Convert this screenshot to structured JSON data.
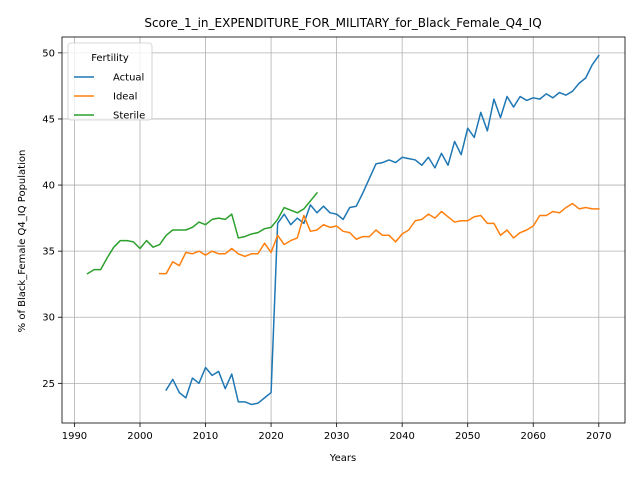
{
  "chart_data": {
    "type": "line",
    "title": "Score_1_in_EXPENDITURE_FOR_MILITARY_for_Black_Female_Q4_IQ",
    "xlabel": "Years",
    "ylabel": "% of Black_Female Q4_IQ Population",
    "xlim": [
      1988.1,
      2074.0
    ],
    "ylim": [
      22.0,
      51.2
    ],
    "xticks": [
      1990,
      2000,
      2010,
      2020,
      2030,
      2040,
      2050,
      2060,
      2070
    ],
    "yticks": [
      25,
      30,
      35,
      40,
      45,
      50
    ],
    "grid": true,
    "legend": {
      "title": "Fertility",
      "position": "top-left"
    },
    "series": [
      {
        "name": "Actual",
        "color": "#1f77b4",
        "points": [
          [
            2004,
            24.5
          ],
          [
            2005,
            25.3
          ],
          [
            2006,
            24.3
          ],
          [
            2007,
            23.9
          ],
          [
            2008,
            25.4
          ],
          [
            2009,
            25.0
          ],
          [
            2010,
            26.2
          ],
          [
            2011,
            25.6
          ],
          [
            2012,
            25.9
          ],
          [
            2013,
            24.6
          ],
          [
            2014,
            25.7
          ],
          [
            2015,
            23.6
          ],
          [
            2016,
            23.6
          ],
          [
            2017,
            23.4
          ],
          [
            2018,
            23.5
          ],
          [
            2019,
            23.9
          ],
          [
            2020,
            24.3
          ],
          [
            2021,
            37.1
          ],
          [
            2022,
            37.8
          ],
          [
            2023,
            37.0
          ],
          [
            2024,
            37.5
          ],
          [
            2025,
            37.1
          ],
          [
            2026,
            38.5
          ],
          [
            2027,
            37.9
          ],
          [
            2028,
            38.4
          ],
          [
            2029,
            37.9
          ],
          [
            2030,
            37.8
          ],
          [
            2031,
            37.4
          ],
          [
            2032,
            38.3
          ],
          [
            2033,
            38.4
          ],
          [
            2034,
            39.4
          ],
          [
            2035,
            40.5
          ],
          [
            2036,
            41.6
          ],
          [
            2037,
            41.7
          ],
          [
            2038,
            41.9
          ],
          [
            2039,
            41.7
          ],
          [
            2040,
            42.1
          ],
          [
            2041,
            42.0
          ],
          [
            2042,
            41.9
          ],
          [
            2043,
            41.5
          ],
          [
            2044,
            42.1
          ],
          [
            2045,
            41.3
          ],
          [
            2046,
            42.4
          ],
          [
            2047,
            41.5
          ],
          [
            2048,
            43.3
          ],
          [
            2049,
            42.3
          ],
          [
            2050,
            44.3
          ],
          [
            2051,
            43.6
          ],
          [
            2052,
            45.5
          ],
          [
            2053,
            44.1
          ],
          [
            2054,
            46.5
          ],
          [
            2055,
            45.1
          ],
          [
            2056,
            46.7
          ],
          [
            2057,
            45.9
          ],
          [
            2058,
            46.7
          ],
          [
            2059,
            46.4
          ],
          [
            2060,
            46.6
          ],
          [
            2061,
            46.5
          ],
          [
            2062,
            46.9
          ],
          [
            2063,
            46.6
          ],
          [
            2064,
            47.0
          ],
          [
            2065,
            46.8
          ],
          [
            2066,
            47.1
          ],
          [
            2067,
            47.7
          ],
          [
            2068,
            48.1
          ],
          [
            2069,
            49.1
          ],
          [
            2070,
            49.8
          ]
        ]
      },
      {
        "name": "Ideal",
        "color": "#ff7f0e",
        "points": [
          [
            2003,
            33.3
          ],
          [
            2004,
            33.3
          ],
          [
            2005,
            34.2
          ],
          [
            2006,
            33.9
          ],
          [
            2007,
            34.9
          ],
          [
            2008,
            34.8
          ],
          [
            2009,
            35.0
          ],
          [
            2010,
            34.7
          ],
          [
            2011,
            35.0
          ],
          [
            2012,
            34.8
          ],
          [
            2013,
            34.8
          ],
          [
            2014,
            35.2
          ],
          [
            2015,
            34.8
          ],
          [
            2016,
            34.6
          ],
          [
            2017,
            34.8
          ],
          [
            2018,
            34.8
          ],
          [
            2019,
            35.6
          ],
          [
            2020,
            34.9
          ],
          [
            2021,
            36.2
          ],
          [
            2022,
            35.5
          ],
          [
            2023,
            35.8
          ],
          [
            2024,
            36.0
          ],
          [
            2025,
            37.7
          ],
          [
            2026,
            36.5
          ],
          [
            2027,
            36.6
          ],
          [
            2028,
            37.0
          ],
          [
            2029,
            36.8
          ],
          [
            2030,
            36.9
          ],
          [
            2031,
            36.5
          ],
          [
            2032,
            36.4
          ],
          [
            2033,
            35.9
          ],
          [
            2034,
            36.1
          ],
          [
            2035,
            36.1
          ],
          [
            2036,
            36.6
          ],
          [
            2037,
            36.2
          ],
          [
            2038,
            36.2
          ],
          [
            2039,
            35.7
          ],
          [
            2040,
            36.3
          ],
          [
            2041,
            36.6
          ],
          [
            2042,
            37.3
          ],
          [
            2043,
            37.4
          ],
          [
            2044,
            37.8
          ],
          [
            2045,
            37.5
          ],
          [
            2046,
            38.0
          ],
          [
            2047,
            37.6
          ],
          [
            2048,
            37.2
          ],
          [
            2049,
            37.3
          ],
          [
            2050,
            37.3
          ],
          [
            2051,
            37.6
          ],
          [
            2052,
            37.7
          ],
          [
            2053,
            37.1
          ],
          [
            2054,
            37.1
          ],
          [
            2055,
            36.2
          ],
          [
            2056,
            36.6
          ],
          [
            2057,
            36.0
          ],
          [
            2058,
            36.4
          ],
          [
            2059,
            36.6
          ],
          [
            2060,
            36.9
          ],
          [
            2061,
            37.7
          ],
          [
            2062,
            37.7
          ],
          [
            2063,
            38.0
          ],
          [
            2064,
            37.9
          ],
          [
            2065,
            38.3
          ],
          [
            2066,
            38.6
          ],
          [
            2067,
            38.2
          ],
          [
            2068,
            38.3
          ],
          [
            2069,
            38.2
          ],
          [
            2070,
            38.2
          ]
        ]
      },
      {
        "name": "Sterile",
        "color": "#2ca02c",
        "points": [
          [
            1992,
            33.3
          ],
          [
            1993,
            33.6
          ],
          [
            1994,
            33.6
          ],
          [
            1995,
            34.5
          ],
          [
            1996,
            35.3
          ],
          [
            1997,
            35.8
          ],
          [
            1998,
            35.8
          ],
          [
            1999,
            35.7
          ],
          [
            2000,
            35.2
          ],
          [
            2001,
            35.8
          ],
          [
            2002,
            35.3
          ],
          [
            2003,
            35.5
          ],
          [
            2004,
            36.2
          ],
          [
            2005,
            36.6
          ],
          [
            2006,
            36.6
          ],
          [
            2007,
            36.6
          ],
          [
            2008,
            36.8
          ],
          [
            2009,
            37.2
          ],
          [
            2010,
            37.0
          ],
          [
            2011,
            37.4
          ],
          [
            2012,
            37.5
          ],
          [
            2013,
            37.4
          ],
          [
            2014,
            37.8
          ],
          [
            2015,
            36.0
          ],
          [
            2016,
            36.1
          ],
          [
            2017,
            36.3
          ],
          [
            2018,
            36.4
          ],
          [
            2019,
            36.7
          ],
          [
            2020,
            36.8
          ],
          [
            2021,
            37.4
          ],
          [
            2022,
            38.3
          ],
          [
            2023,
            38.1
          ],
          [
            2024,
            37.9
          ],
          [
            2025,
            38.2
          ],
          [
            2026,
            38.8
          ],
          [
            2027,
            39.4
          ]
        ]
      }
    ]
  }
}
